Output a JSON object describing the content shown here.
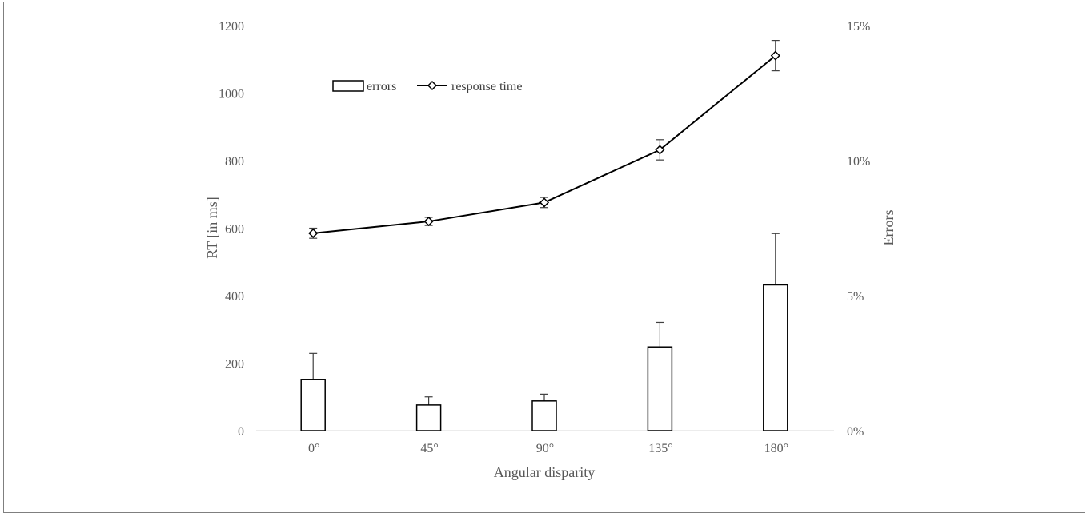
{
  "chart_data": {
    "type": "bar",
    "categories": [
      "0°",
      "45°",
      "90°",
      "135°",
      "180°"
    ],
    "xlabel": "Angular disparity",
    "ylabel": "RT [in ms]",
    "y2label": "Errors",
    "ylim": [
      0,
      1200
    ],
    "y2lim": [
      0,
      0.15
    ],
    "y_ticks": [
      "0",
      "200",
      "400",
      "600",
      "800",
      "1000",
      "1200"
    ],
    "y2_ticks": [
      "0%",
      "5%",
      "10%",
      "15%"
    ],
    "legend_position": "top-left",
    "grid": false,
    "series": [
      {
        "name": "errors",
        "type": "bar",
        "axis": "right",
        "values": [
          0.019,
          0.0095,
          0.011,
          0.031,
          0.054
        ],
        "error": [
          0.0096,
          0.003,
          0.0025,
          0.0091,
          0.019
        ]
      },
      {
        "name": "response time",
        "type": "line",
        "marker": "diamond",
        "axis": "left",
        "values": [
          585,
          620,
          676,
          832,
          1111
        ],
        "error": [
          15,
          12,
          15,
          30,
          45
        ]
      }
    ],
    "colors": {
      "line": "#000000",
      "bar_fill": "#ffffff",
      "bar_edge": "#000000",
      "text": "#595959"
    }
  }
}
